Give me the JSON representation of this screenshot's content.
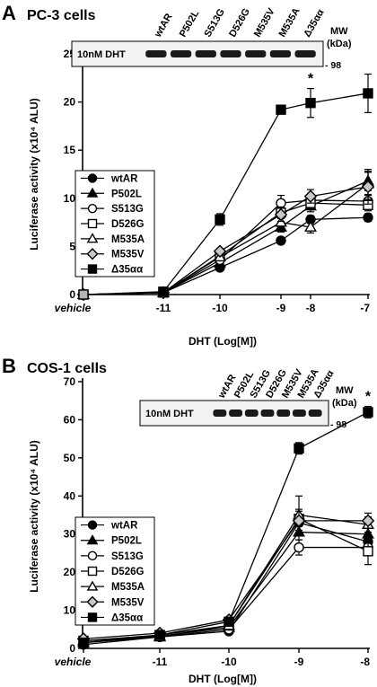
{
  "colors": {
    "ink": "#000000",
    "hollow": "#ffffff",
    "diamond_fill": "#c8c8c8",
    "vehicle_fill": "#b4b4b4"
  },
  "chart_data": [
    {
      "panel": "A",
      "type": "line",
      "title": "PC-3 cells",
      "xlabel": "DHT (Log[M])",
      "ylabel": "Luciferase activity (x10⁴ ALU)",
      "x_ticks": [
        "vehicle",
        "-11",
        "-10",
        "-9",
        "-8",
        "-7"
      ],
      "ylim": [
        0,
        25
      ],
      "y_ticks": [
        0,
        5,
        10,
        15,
        20,
        25
      ],
      "legend_position": "left",
      "annotation": {
        "text": "*",
        "x": "-8"
      },
      "blot": {
        "lanes": [
          "wtAR",
          "P502L",
          "S513G",
          "D526G",
          "M535V",
          "M535A",
          "Δ35αα"
        ],
        "label": "10nM DHT",
        "mw_header": "MW",
        "mw_unit": "(kDa)",
        "mw_marker": "- 98"
      },
      "series": [
        {
          "name": "wtAR",
          "marker": "circle-filled",
          "values": [
            0,
            0.2,
            2.8,
            5.6,
            7.8,
            8.0
          ],
          "errors": [
            0,
            0,
            0.3,
            0.3,
            0.4,
            0.4
          ]
        },
        {
          "name": "P502L",
          "marker": "triangle-filled",
          "values": [
            0,
            0.2,
            3.3,
            7.0,
            9.2,
            11.8
          ],
          "errors": [
            0,
            0,
            0.3,
            0.5,
            0.6,
            1.0
          ]
        },
        {
          "name": "S513G",
          "marker": "circle-open",
          "values": [
            0,
            0.2,
            3.6,
            9.5,
            9.8,
            9.7
          ],
          "errors": [
            0,
            0,
            0.3,
            0.8,
            0.6,
            0.7
          ]
        },
        {
          "name": "D526G",
          "marker": "square-open",
          "values": [
            0,
            0.2,
            4.0,
            8.5,
            9.5,
            9.3
          ],
          "errors": [
            0,
            0,
            0.3,
            0.6,
            0.5,
            0.6
          ]
        },
        {
          "name": "M535A",
          "marker": "triangle-open",
          "values": [
            0,
            0.2,
            3.9,
            7.5,
            7.0,
            11.5
          ],
          "errors": [
            0,
            0,
            0.3,
            0.5,
            0.6,
            1.2
          ]
        },
        {
          "name": "M535V",
          "marker": "diamond-open",
          "values": [
            0,
            0.2,
            4.5,
            8.3,
            10.2,
            11.2
          ],
          "errors": [
            0,
            0,
            0.3,
            0.7,
            0.7,
            1.8
          ]
        },
        {
          "name": "Δ35αα",
          "marker": "square-filled",
          "values": [
            0,
            0.3,
            7.8,
            19.2,
            19.9,
            20.9
          ],
          "errors": [
            0,
            0,
            0.6,
            0,
            1.5,
            2.0
          ]
        }
      ]
    },
    {
      "panel": "B",
      "type": "line",
      "title": "COS-1 cells",
      "xlabel": "DHT (Log[M])",
      "ylabel": "Luciferase activity (x10⁴ ALU)",
      "x_ticks": [
        "vehicle",
        "-11",
        "-10",
        "-9",
        "-8"
      ],
      "ylim": [
        0,
        70
      ],
      "y_ticks": [
        0,
        10,
        20,
        30,
        40,
        50,
        60,
        70
      ],
      "legend_position": "left",
      "annotation": {
        "text": "*",
        "x": "-8"
      },
      "blot": {
        "lanes": [
          "wtAR",
          "P502L",
          "S513G",
          "D526G",
          "M535V",
          "M535A",
          "Δ35αα"
        ],
        "label": "10nM DHT",
        "mw_header": "MW",
        "mw_unit": "(kDa)",
        "mw_marker": "- 98"
      },
      "series": [
        {
          "name": "wtAR",
          "marker": "circle-filled",
          "values": [
            1.0,
            3.0,
            4.5,
            33.0,
            28.0
          ],
          "errors": [
            0,
            0,
            0.5,
            2.0,
            2.0
          ]
        },
        {
          "name": "P502L",
          "marker": "triangle-filled",
          "values": [
            1.5,
            3.2,
            5.5,
            30.5,
            30.0
          ],
          "errors": [
            0,
            0,
            0.5,
            2.0,
            2.0
          ]
        },
        {
          "name": "S513G",
          "marker": "circle-open",
          "values": [
            1.5,
            3.0,
            5.0,
            26.5,
            26.5
          ],
          "errors": [
            0,
            0,
            0.5,
            2.0,
            2.0
          ]
        },
        {
          "name": "D526G",
          "marker": "square-open",
          "values": [
            2.0,
            3.5,
            6.0,
            34.0,
            25.5
          ],
          "errors": [
            0,
            0,
            0.5,
            2.0,
            3.5
          ]
        },
        {
          "name": "M535A",
          "marker": "triangle-open",
          "values": [
            2.0,
            3.0,
            6.0,
            35.0,
            32.5
          ],
          "errors": [
            0,
            0,
            0.5,
            5.0,
            2.0
          ]
        },
        {
          "name": "M535V",
          "marker": "diamond-open",
          "values": [
            2.5,
            4.0,
            7.5,
            33.5,
            33.5
          ],
          "errors": [
            0,
            0,
            0.5,
            3.0,
            2.0
          ]
        },
        {
          "name": "Δ35αα",
          "marker": "square-filled",
          "values": [
            1.5,
            3.5,
            7.0,
            52.5,
            62.0
          ],
          "errors": [
            0,
            0,
            0.5,
            1.5,
            1.5
          ]
        }
      ]
    }
  ]
}
